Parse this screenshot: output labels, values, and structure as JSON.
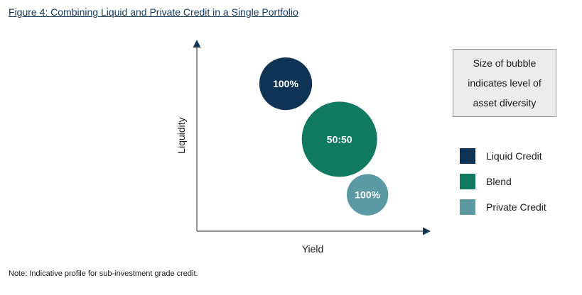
{
  "figure": {
    "title": "Figure 4: Combining Liquid and Private Credit in a Single Portfolio",
    "note": "Note: Indicative profile for sub-investment grade credit."
  },
  "info_box": {
    "lines": [
      "Size of bubble",
      "indicates level of",
      "asset diversity"
    ]
  },
  "colors": {
    "liquid_credit": "#0f3355",
    "blend": "#0f7a60",
    "private_credit": "#5b9aa3"
  },
  "chart_data": {
    "type": "scatter",
    "xlabel": "Yield",
    "ylabel": "Liquidity",
    "xlim": [
      0,
      10
    ],
    "ylim": [
      0,
      10
    ],
    "grid": false,
    "legend_placement": "right",
    "series": [
      {
        "name": "Liquid Credit",
        "color": "#0f3355",
        "points": [
          {
            "x": 3.8,
            "y": 7.7,
            "size": 0.7,
            "label": "100%"
          }
        ]
      },
      {
        "name": "Blend",
        "color": "#0f7a60",
        "points": [
          {
            "x": 6.1,
            "y": 4.8,
            "size": 1.0,
            "label": "50:50"
          }
        ]
      },
      {
        "name": "Private Credit",
        "color": "#5b9aa3",
        "points": [
          {
            "x": 7.3,
            "y": 1.9,
            "size": 0.55,
            "label": "100%"
          }
        ]
      }
    ]
  }
}
